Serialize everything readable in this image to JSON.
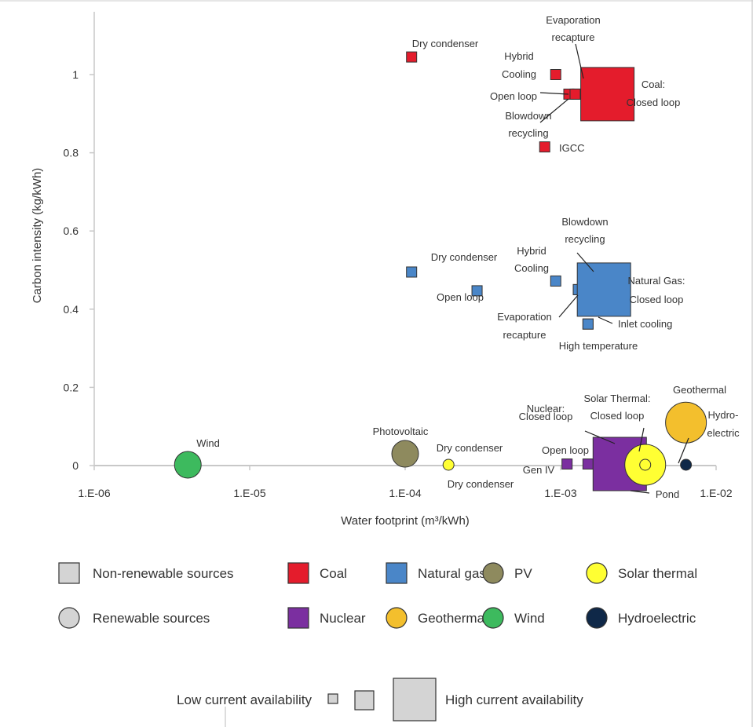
{
  "colors": {
    "coal": "#e41c2c",
    "natural_gas": "#4a86c8",
    "pv": "#8e8a5e",
    "solar_thermal": "#ffff33",
    "nuclear": "#7b2fa0",
    "geothermal": "#f3bf2d",
    "wind": "#3dba5e",
    "hydroelectric": "#0f2848",
    "neutral": "#d4d4d4"
  },
  "chart_data": {
    "type": "scatter",
    "xlabel": "Water footprint (m³/kWh)",
    "ylabel": "Carbon intensity (kg/kWh)",
    "x_scale": "log",
    "xlim": [
      1e-06,
      0.01
    ],
    "ylim": [
      0,
      1.15
    ],
    "x_ticks": [
      {
        "value": 1e-06,
        "label": "1.E-06"
      },
      {
        "value": 1e-05,
        "label": "1.E-05"
      },
      {
        "value": 0.0001,
        "label": "1.E-04"
      },
      {
        "value": 0.001,
        "label": "1.E-03"
      },
      {
        "value": 0.01,
        "label": "1.E-02"
      }
    ],
    "y_ticks": [
      {
        "value": 0,
        "label": "0"
      },
      {
        "value": 0.2,
        "label": "0.2"
      },
      {
        "value": 0.4,
        "label": "0.4"
      },
      {
        "value": 0.6,
        "label": "0.6"
      },
      {
        "value": 0.8,
        "label": "0.8"
      },
      {
        "value": 1,
        "label": "1"
      }
    ],
    "grid": false,
    "points": [
      {
        "source": "coal",
        "label": "Dry condenser",
        "x": 0.00011,
        "y": 1.045,
        "shape": "square",
        "availability": 1
      },
      {
        "source": "coal",
        "label": "Hybrid Cooling",
        "x": 0.00093,
        "y": 1.0,
        "shape": "square",
        "availability": 1
      },
      {
        "source": "coal",
        "label": "Open loop",
        "x": 0.00113,
        "y": 0.95,
        "shape": "square",
        "availability": 1
      },
      {
        "source": "coal",
        "label": "Evaporation recapture",
        "x": 0.00128,
        "y": 0.95,
        "shape": "square",
        "availability": 1
      },
      {
        "source": "coal",
        "label": "Blowdown recycling",
        "x": 0.00124,
        "y": 0.95,
        "shape": "square",
        "availability": 1
      },
      {
        "source": "coal",
        "label": "Coal: Closed loop",
        "x": 0.002,
        "y": 0.95,
        "shape": "square",
        "availability": 3
      },
      {
        "source": "coal",
        "label": "IGCC",
        "x": 0.00079,
        "y": 0.815,
        "shape": "square",
        "availability": 1
      },
      {
        "source": "natural_gas",
        "label": "Dry condenser",
        "x": 0.00011,
        "y": 0.495,
        "shape": "square",
        "availability": 1
      },
      {
        "source": "natural_gas",
        "label": "Open loop",
        "x": 0.00029,
        "y": 0.447,
        "shape": "square",
        "availability": 1
      },
      {
        "source": "natural_gas",
        "label": "Hybrid Cooling",
        "x": 0.00093,
        "y": 0.472,
        "shape": "square",
        "availability": 1
      },
      {
        "source": "natural_gas",
        "label": "Evaporation recapture",
        "x": 0.0013,
        "y": 0.45,
        "shape": "square",
        "availability": 1
      },
      {
        "source": "natural_gas",
        "label": "Blowdown recycling",
        "x": 0.0013,
        "y": 0.45,
        "shape": "square",
        "availability": 1
      },
      {
        "source": "natural_gas",
        "label": "Natural Gas: Closed loop",
        "x": 0.0019,
        "y": 0.45,
        "shape": "square",
        "availability": 3
      },
      {
        "source": "natural_gas",
        "label": "Inlet cooling",
        "x": 0.0015,
        "y": 0.362,
        "shape": "square",
        "availability": 1
      },
      {
        "source": "natural_gas",
        "label": "High temperature",
        "x": 0.0015,
        "y": 0.362,
        "shape": "square",
        "availability": 1
      },
      {
        "source": "pv",
        "label": "Photovoltaic",
        "x": 0.0001,
        "y": 0.03,
        "shape": "circle",
        "availability": 2
      },
      {
        "source": "solar_thermal",
        "label": "Dry condenser",
        "x": 0.00019,
        "y": 0.002,
        "shape": "circle",
        "availability": 1
      },
      {
        "source": "nuclear",
        "label": "Open loop",
        "x": 0.0011,
        "y": 0.004,
        "shape": "square",
        "availability": 1
      },
      {
        "source": "nuclear",
        "label": "Gen IV",
        "x": 0.0015,
        "y": 0.004,
        "shape": "square",
        "availability": 1
      },
      {
        "source": "nuclear",
        "label": "Nuclear: Closed loop",
        "x": 0.0024,
        "y": 0.004,
        "shape": "square",
        "availability": 3
      },
      {
        "source": "solar_thermal",
        "label": "Solar Thermal: Closed loop",
        "x": 0.0035,
        "y": 0.002,
        "shape": "circle",
        "availability": 3
      },
      {
        "source": "solar_thermal",
        "label": "Pond",
        "x": 0.0035,
        "y": 0.002,
        "shape": "circle",
        "availability": 1
      },
      {
        "source": "geothermal",
        "label": "Geothermal",
        "x": 0.0064,
        "y": 0.11,
        "shape": "circle",
        "availability": 3
      },
      {
        "source": "hydroelectric",
        "label": "Hydro-electric",
        "x": 0.0064,
        "y": 0.002,
        "shape": "circle",
        "availability": 1
      },
      {
        "source": "wind",
        "label": "Wind",
        "x": 4e-06,
        "y": 0.002,
        "shape": "circle",
        "availability": 2
      }
    ],
    "annotations": [
      {
        "text": "Dry condenser",
        "source": "coal"
      },
      {
        "text": "Evaporation recapture",
        "source": "coal"
      },
      {
        "text": "Hybrid Cooling",
        "source": "coal"
      },
      {
        "text": "Open loop",
        "source": "coal"
      },
      {
        "text": "Blowdown recycling",
        "source": "coal"
      },
      {
        "text": "Coal: Closed loop",
        "source": "coal"
      },
      {
        "text": "IGCC",
        "source": "coal"
      },
      {
        "text": "Blowdown recycling",
        "source": "natural_gas"
      },
      {
        "text": "Dry condenser",
        "source": "natural_gas"
      },
      {
        "text": "Hybrid Cooling",
        "source": "natural_gas"
      },
      {
        "text": "Open loop",
        "source": "natural_gas"
      },
      {
        "text": "Natural Gas: Closed loop",
        "source": "natural_gas"
      },
      {
        "text": "Evaporation recapture",
        "source": "natural_gas"
      },
      {
        "text": "Inlet cooling",
        "source": "natural_gas"
      },
      {
        "text": "High temperature",
        "source": "natural_gas"
      },
      {
        "text": "Wind",
        "source": "wind"
      },
      {
        "text": "Photovoltaic",
        "source": "pv"
      },
      {
        "text": "Dry condenser",
        "source": "solar_thermal"
      },
      {
        "text": "Dry condenser",
        "source": "solar_thermal"
      },
      {
        "text": "Nuclear: Closed loop",
        "source": "nuclear"
      },
      {
        "text": "Solar Thermal: Closed loop",
        "source": "solar_thermal"
      },
      {
        "text": "Geothermal",
        "source": "geothermal"
      },
      {
        "text": "Hydro-electric",
        "source": "hydroelectric"
      },
      {
        "text": "Open loop",
        "source": "nuclear"
      },
      {
        "text": "Gen IV",
        "source": "nuclear"
      },
      {
        "text": "Pond",
        "source": "solar_thermal"
      }
    ],
    "legend": {
      "placement": "bottom",
      "shape_entries": [
        {
          "label": "Non-renewable sources",
          "shape": "square"
        },
        {
          "label": "Renewable sources",
          "shape": "circle"
        }
      ],
      "color_entries": [
        {
          "label": "Coal",
          "key": "coal",
          "shape": "square"
        },
        {
          "label": "Natural gas",
          "key": "natural_gas",
          "shape": "square"
        },
        {
          "label": "PV",
          "key": "pv",
          "shape": "circle"
        },
        {
          "label": "Solar thermal",
          "key": "solar_thermal",
          "shape": "circle"
        },
        {
          "label": "Nuclear",
          "key": "nuclear",
          "shape": "square"
        },
        {
          "label": "Geothermal",
          "key": "geothermal",
          "shape": "circle"
        },
        {
          "label": "Wind",
          "key": "wind",
          "shape": "circle"
        },
        {
          "label": "Hydroelectric",
          "key": "hydroelectric",
          "shape": "circle"
        }
      ],
      "availability": {
        "low_label": "Low current availability",
        "high_label": "High current availability",
        "levels": [
          1,
          2,
          3
        ]
      }
    }
  }
}
